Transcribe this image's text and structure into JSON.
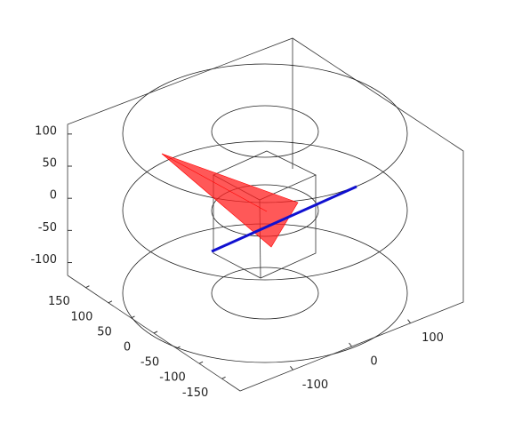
{
  "chart_data": {
    "type": "3d-line",
    "xlim": [
      -190,
      190
    ],
    "xticks": [
      150,
      100,
      50,
      0,
      -50,
      -100,
      -150
    ],
    "ylim": [
      -190,
      190
    ],
    "yticks": [
      -100,
      0,
      100
    ],
    "zlim": [
      -120,
      115
    ],
    "zticks": [
      100,
      50,
      0,
      -50,
      -100
    ]
  }
}
